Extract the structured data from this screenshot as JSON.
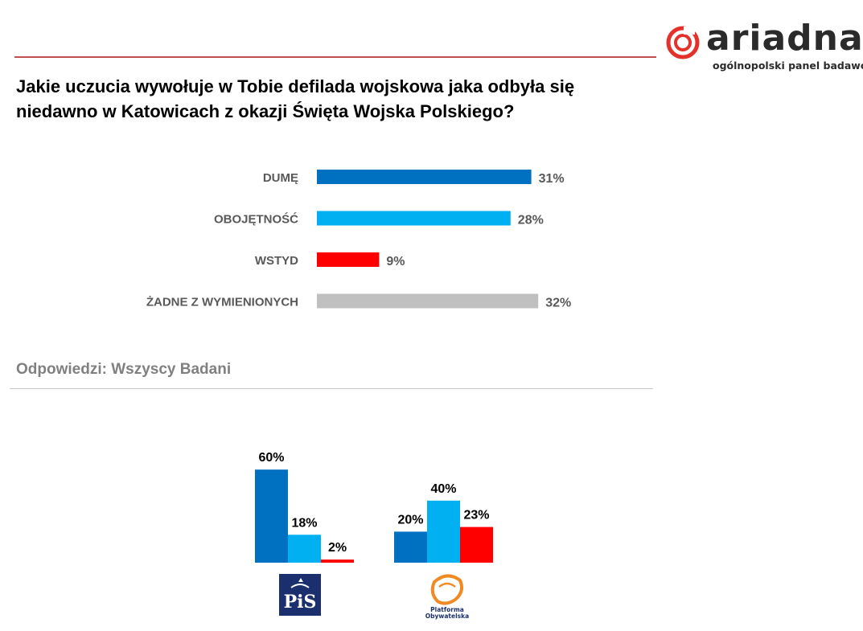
{
  "brand": {
    "name": "ariadna",
    "tagline": "ogólnopolski panel badawczy"
  },
  "question": "Jakie uczucia wywołuje w Tobie defilada wojskowa jaka odbyła się niedawno w Katowicach z okazji Święta Wojska Polskiego?",
  "subtitle": "Odpowiedzi: Wszyscy Badani",
  "chart_data": [
    {
      "type": "bar",
      "orientation": "horizontal",
      "categories": [
        "DUMĘ",
        "OBOJĘTNOŚĆ",
        "WSTYD",
        "ŻADNE Z WYMIENIONYCH"
      ],
      "values": [
        31,
        28,
        9,
        32
      ],
      "value_labels": [
        "31%",
        "28%",
        "9%",
        "32%"
      ],
      "colors": [
        "#0070c0",
        "#00b0f0",
        "#ff0000",
        "#c0c0c0"
      ],
      "unit": "%",
      "xlim": [
        0,
        100
      ],
      "grid": false
    },
    {
      "type": "bar",
      "orientation": "vertical",
      "categories": [
        "PiS",
        "Platforma Obywatelska"
      ],
      "series": [
        {
          "name": "DUMĘ",
          "color": "#0070c0",
          "values": [
            60,
            20
          ],
          "labels": [
            "60%",
            "20%"
          ]
        },
        {
          "name": "OBOJĘTNOŚĆ",
          "color": "#00b0f0",
          "values": [
            18,
            40
          ],
          "labels": [
            "18%",
            "40%"
          ]
        },
        {
          "name": "WSTYD",
          "color": "#ff0000",
          "values": [
            2,
            23
          ],
          "labels": [
            "2%",
            "23%"
          ]
        }
      ],
      "unit": "%",
      "ylim": [
        0,
        100
      ],
      "grid": false
    }
  ],
  "party_logos": {
    "pis": {
      "text": "PiS"
    },
    "po": {
      "line1": "Platforma",
      "line2": "Obywatelska"
    }
  }
}
